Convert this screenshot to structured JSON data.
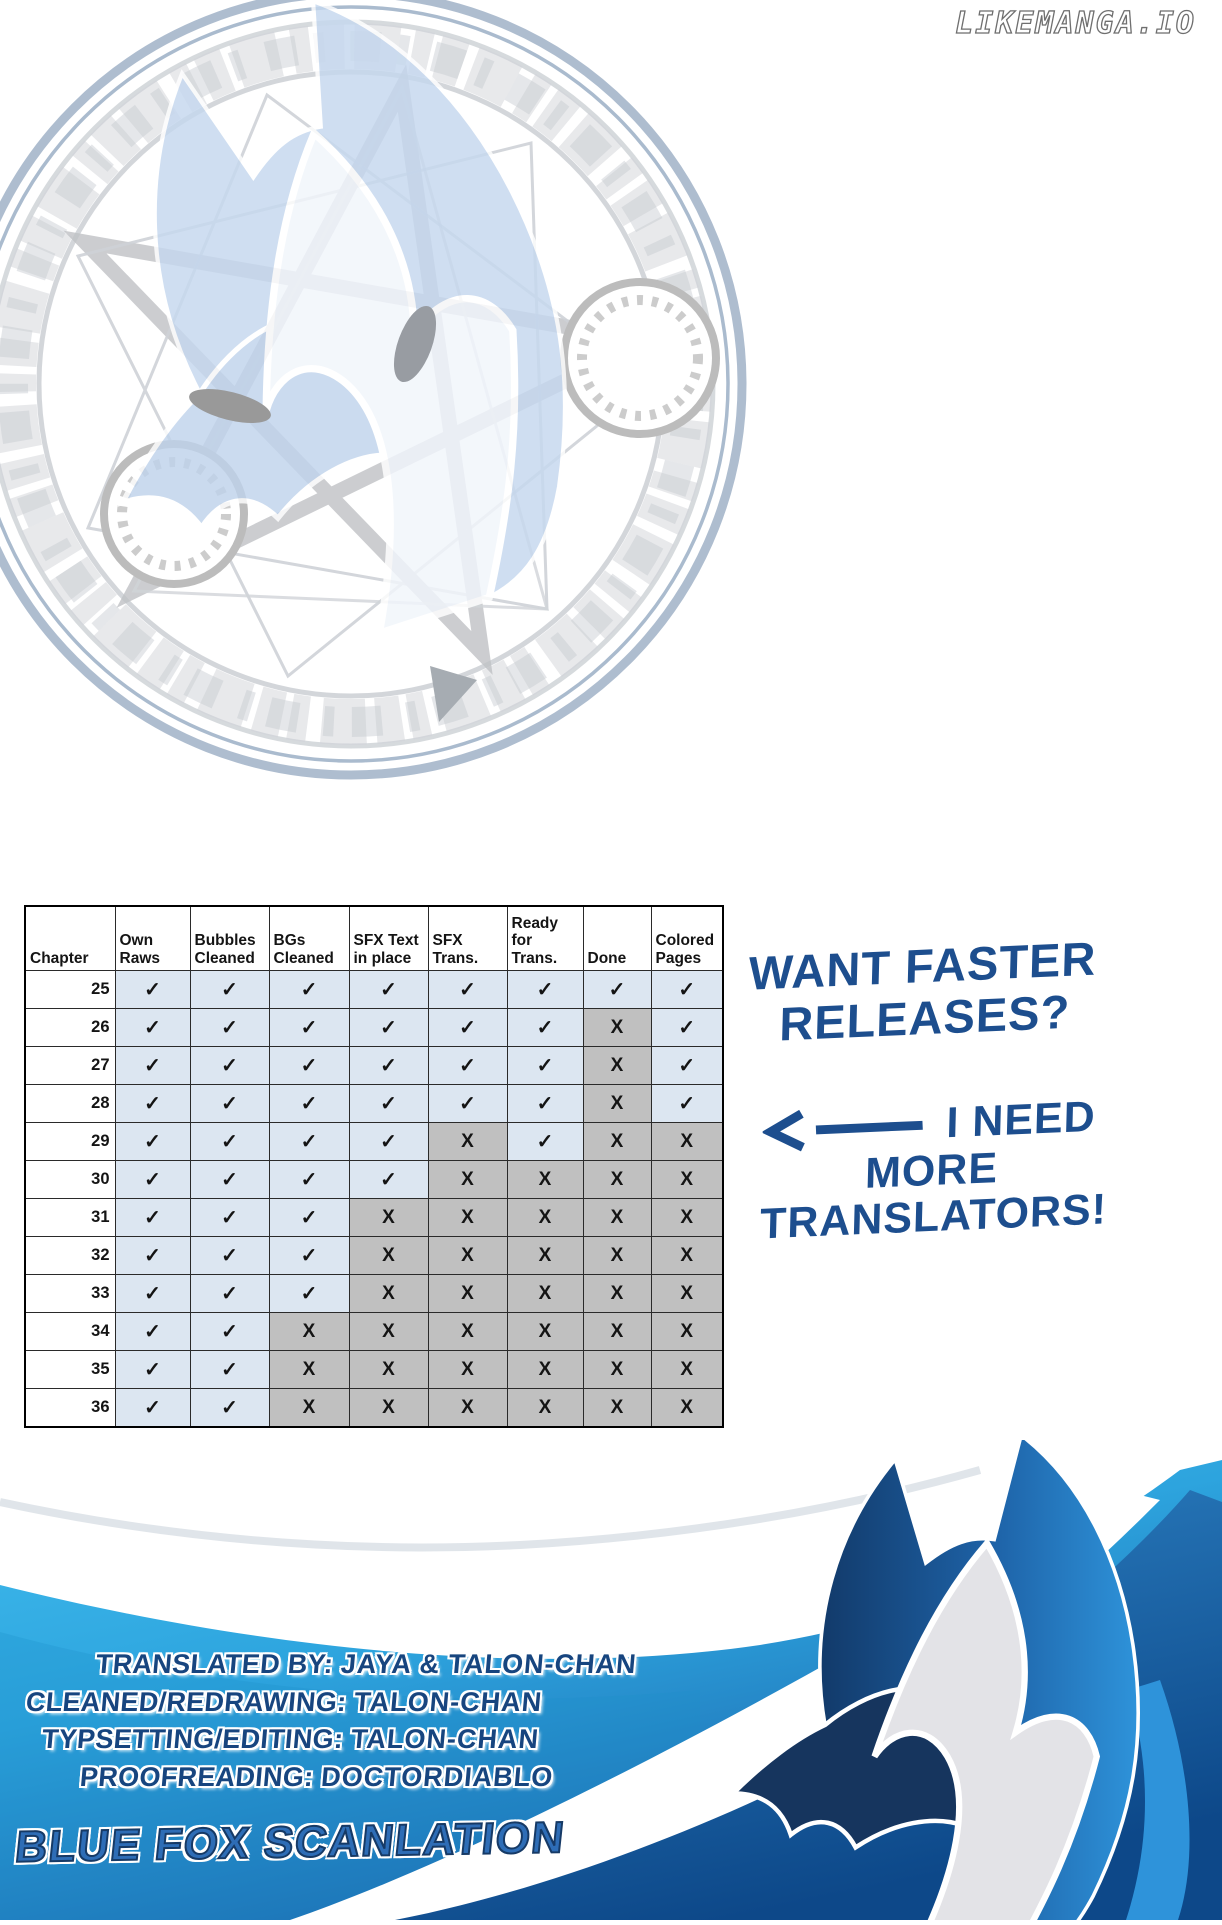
{
  "watermark": {
    "text": "LIKEMANGA.IO"
  },
  "table": {
    "headers": [
      "Chapter",
      "Own Raws",
      "Bubbles Cleaned",
      "BGs Cleaned",
      "SFX Text in place",
      "SFX Trans.",
      "Ready for Trans.",
      "Done",
      "Colored Pages"
    ],
    "symbols": {
      "check": "✓",
      "cross": "X"
    },
    "rows": [
      {
        "chapter": "25",
        "cells": [
          "check",
          "check",
          "check",
          "check",
          "check",
          "check",
          "check",
          "check"
        ]
      },
      {
        "chapter": "26",
        "cells": [
          "check",
          "check",
          "check",
          "check",
          "check",
          "check",
          "cross",
          "check"
        ]
      },
      {
        "chapter": "27",
        "cells": [
          "check",
          "check",
          "check",
          "check",
          "check",
          "check",
          "cross",
          "check"
        ]
      },
      {
        "chapter": "28",
        "cells": [
          "check",
          "check",
          "check",
          "check",
          "check",
          "check",
          "cross",
          "check"
        ]
      },
      {
        "chapter": "29",
        "cells": [
          "check",
          "check",
          "check",
          "check",
          "cross",
          "check",
          "cross",
          "cross"
        ]
      },
      {
        "chapter": "30",
        "cells": [
          "check",
          "check",
          "check",
          "check",
          "cross",
          "cross",
          "cross",
          "cross"
        ]
      },
      {
        "chapter": "31",
        "cells": [
          "check",
          "check",
          "check",
          "cross",
          "cross",
          "cross",
          "cross",
          "cross"
        ]
      },
      {
        "chapter": "32",
        "cells": [
          "check",
          "check",
          "check",
          "cross",
          "cross",
          "cross",
          "cross",
          "cross"
        ]
      },
      {
        "chapter": "33",
        "cells": [
          "check",
          "check",
          "check",
          "cross",
          "cross",
          "cross",
          "cross",
          "cross"
        ]
      },
      {
        "chapter": "34",
        "cells": [
          "check",
          "check",
          "cross",
          "cross",
          "cross",
          "cross",
          "cross",
          "cross"
        ]
      },
      {
        "chapter": "35",
        "cells": [
          "check",
          "check",
          "cross",
          "cross",
          "cross",
          "cross",
          "cross",
          "cross"
        ]
      },
      {
        "chapter": "36",
        "cells": [
          "check",
          "check",
          "cross",
          "cross",
          "cross",
          "cross",
          "cross",
          "cross"
        ]
      }
    ]
  },
  "side_note": {
    "line1": "WANT FASTER",
    "line2": "RELEASES?",
    "line3": "I NEED",
    "line4": "MORE",
    "line5": "TRANSLATORS!"
  },
  "credits": {
    "lines": [
      {
        "label": "TRANSLATED BY:",
        "value": "JAYA & TALON-CHAN"
      },
      {
        "label": "CLEANED/REDRAWING:",
        "value": "TALON-CHAN"
      },
      {
        "label": "TYPSETTING/EDITING:",
        "value": "TALON-CHAN"
      },
      {
        "label": "PROOFREADING:",
        "value": "DOCTORDIABLO"
      }
    ],
    "group_name": "BLUE FOX SCANLATION"
  },
  "icons": {
    "sigil": "blue-fox-magic-circle",
    "fox": "blue-fox-logo",
    "arrow": "left-arrow"
  },
  "colors": {
    "note_blue": "#1d4e8e",
    "cell_check_bg": "#dce6f1",
    "cell_cross_bg": "#c0c0c0",
    "credit_navy": "#17457f",
    "group_blue": "#2e6db6",
    "wave_cyan": "#3ab9eb",
    "wave_deep": "#0d4889",
    "fox_navy": "#16355e",
    "fox_bright_blue": "#2e93da",
    "sigil_blue": "#b9cfe9"
  }
}
